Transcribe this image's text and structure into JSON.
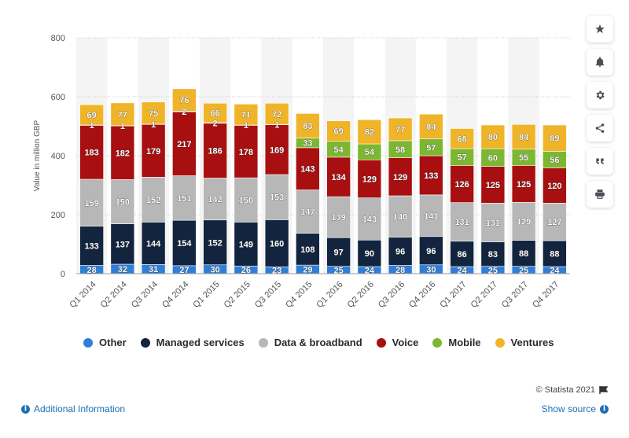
{
  "sidebar": {
    "buttons": [
      {
        "name": "star-icon"
      },
      {
        "name": "bell-icon"
      },
      {
        "name": "gear-icon"
      },
      {
        "name": "share-icon"
      },
      {
        "name": "quote-icon"
      },
      {
        "name": "print-icon"
      }
    ]
  },
  "footer": {
    "additional_info": "Additional Information",
    "show_source": "Show source",
    "copyright": "© Statista 2021"
  },
  "chart_data": {
    "type": "bar",
    "stacked": true,
    "ylabel": "Value in million GBP",
    "xlabel": "",
    "ylim": [
      0,
      800
    ],
    "yticks": [
      "0",
      "200",
      "400",
      "600",
      "800"
    ],
    "grid": true,
    "legend_position": "bottom",
    "categories": [
      "Q1 2014",
      "Q2 2014",
      "Q3 2014",
      "Q4 2014",
      "Q1 2015",
      "Q2 2015",
      "Q3 2015",
      "Q4 2015",
      "Q1 2016",
      "Q2 2016",
      "Q3 2016",
      "Q4 2016",
      "Q1 2017",
      "Q2 2017",
      "Q3 2017",
      "Q4 2017"
    ],
    "series": [
      {
        "name": "Other",
        "color": "#2f7fd8",
        "values": [
          28,
          32,
          31,
          27,
          30,
          26,
          23,
          29,
          25,
          24,
          28,
          30,
          24,
          25,
          25,
          24
        ]
      },
      {
        "name": "Managed services",
        "color": "#12243e",
        "values": [
          133,
          137,
          144,
          154,
          152,
          149,
          160,
          108,
          97,
          90,
          96,
          96,
          86,
          83,
          88,
          88
        ]
      },
      {
        "name": "Data & broadband",
        "color": "#b7b7b7",
        "values": [
          159,
          150,
          152,
          151,
          142,
          150,
          153,
          147,
          139,
          143,
          140,
          141,
          131,
          131,
          129,
          127
        ]
      },
      {
        "name": "Voice",
        "color": "#a80f10",
        "values": [
          183,
          182,
          179,
          217,
          186,
          178,
          169,
          143,
          134,
          129,
          129,
          133,
          126,
          125,
          125,
          120
        ]
      },
      {
        "name": "Mobile",
        "color": "#7cb82f",
        "values": [
          1,
          1,
          1,
          2,
          2,
          1,
          1,
          33,
          54,
          54,
          58,
          57,
          57,
          60,
          55,
          56
        ]
      },
      {
        "name": "Ventures",
        "color": "#f0b429",
        "values": [
          69,
          77,
          75,
          76,
          66,
          71,
          72,
          83,
          69,
          82,
          77,
          84,
          68,
          80,
          84,
          89
        ]
      }
    ]
  }
}
